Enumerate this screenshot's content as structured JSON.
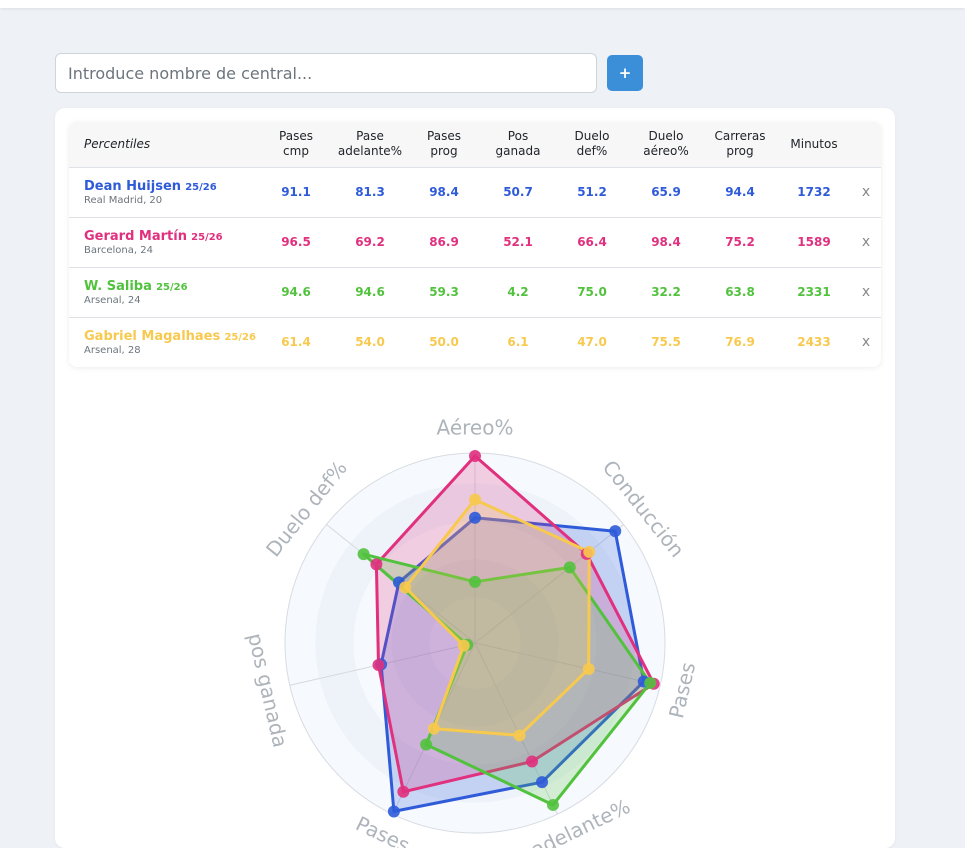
{
  "search": {
    "placeholder": "Introduce nombre de central...",
    "value": "",
    "add_label": "+"
  },
  "table": {
    "headers": [
      {
        "line1": "Percentiles",
        "line2": ""
      },
      {
        "line1": "Pases",
        "line2": "cmp"
      },
      {
        "line1": "Pase",
        "line2": "adelante%"
      },
      {
        "line1": "Pases",
        "line2": "prog"
      },
      {
        "line1": "Pos",
        "line2": "ganada"
      },
      {
        "line1": "Duelo",
        "line2": "def%"
      },
      {
        "line1": "Duelo",
        "line2": "aéreo%"
      },
      {
        "line1": "Carreras",
        "line2": "prog"
      },
      {
        "line1": "Minutos",
        "line2": ""
      }
    ],
    "rows": [
      {
        "name": "Dean Huijsen",
        "season": "25/26",
        "info": "Real Madrid, 20",
        "color": "#2f5bd9",
        "values": [
          "91.1",
          "81.3",
          "98.4",
          "50.7",
          "51.2",
          "65.9",
          "94.4",
          "1732"
        ],
        "remove": "x"
      },
      {
        "name": "Gerard Martín",
        "season": "25/26",
        "info": "Barcelona, 24",
        "color": "#e0307e",
        "values": [
          "96.5",
          "69.2",
          "86.9",
          "52.1",
          "66.4",
          "98.4",
          "75.2",
          "1589"
        ],
        "remove": "x"
      },
      {
        "name": "W. Saliba",
        "season": "25/26",
        "info": "Arsenal, 24",
        "color": "#52c23e",
        "values": [
          "94.6",
          "94.6",
          "59.3",
          "4.2",
          "75.0",
          "32.2",
          "63.8",
          "2331"
        ],
        "remove": "x"
      },
      {
        "name": "Gabriel Magalhaes",
        "season": "25/26",
        "info": "Arsenal, 28",
        "color": "#f7c94e",
        "values": [
          "61.4",
          "54.0",
          "50.0",
          "6.1",
          "47.0",
          "75.5",
          "76.9",
          "2433"
        ],
        "remove": "x"
      }
    ]
  },
  "chart_data": {
    "type": "radar",
    "axes": [
      "Aéreo%",
      "Conducción",
      "Pases",
      "Pase adelante%",
      "Pases prog",
      "pos ganada",
      "Duelo def%"
    ],
    "visible_axis_labels": [
      "Aéreo%",
      "Conducción",
      "Pases",
      "ce adelante%",
      "Pases",
      "pos ganada",
      "Duelo def%"
    ],
    "range": [
      0,
      100
    ],
    "series": [
      {
        "name": "Dean Huijsen",
        "color": "#2f5bd9",
        "values": [
          65.9,
          94.4,
          91.1,
          81.3,
          98.4,
          50.7,
          51.2
        ]
      },
      {
        "name": "Gerard Martín",
        "color": "#e0307e",
        "values": [
          98.4,
          75.2,
          96.5,
          69.2,
          86.9,
          52.1,
          66.4
        ]
      },
      {
        "name": "W. Saliba",
        "color": "#52c23e",
        "values": [
          32.2,
          63.8,
          94.6,
          94.6,
          59.3,
          4.2,
          75.0
        ]
      },
      {
        "name": "Gabriel Magalhaes",
        "color": "#f7c94e",
        "values": [
          75.5,
          76.9,
          61.4,
          54.0,
          50.0,
          6.1,
          47.0
        ]
      }
    ]
  }
}
